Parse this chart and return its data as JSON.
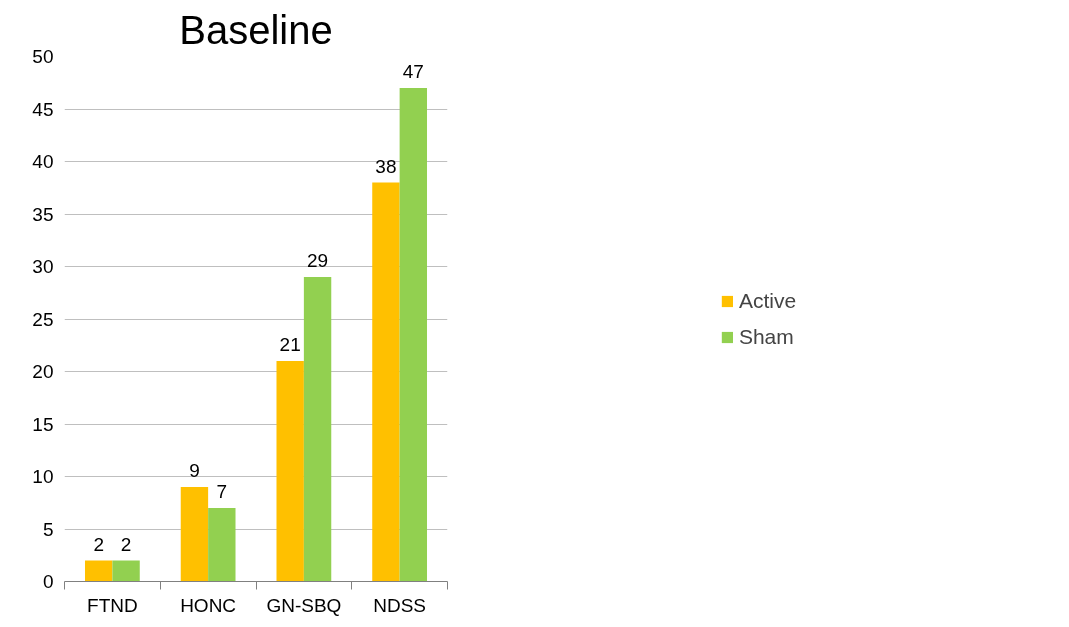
{
  "chart_data": {
    "type": "bar",
    "title": "Baseline",
    "categories": [
      "FTND",
      "HONC",
      "GN-SBQ",
      "NDSS"
    ],
    "series": [
      {
        "name": "Active",
        "color": "#ffc000",
        "values": [
          2,
          9,
          21,
          38
        ]
      },
      {
        "name": "Sham",
        "color": "#92d050",
        "values": [
          2,
          7,
          29,
          47
        ]
      }
    ],
    "ylim": [
      0,
      50
    ],
    "yticks": [
      0,
      5,
      10,
      15,
      20,
      25,
      30,
      35,
      40,
      45,
      50
    ],
    "grid": "y",
    "legend": "right",
    "data_labels": true
  }
}
